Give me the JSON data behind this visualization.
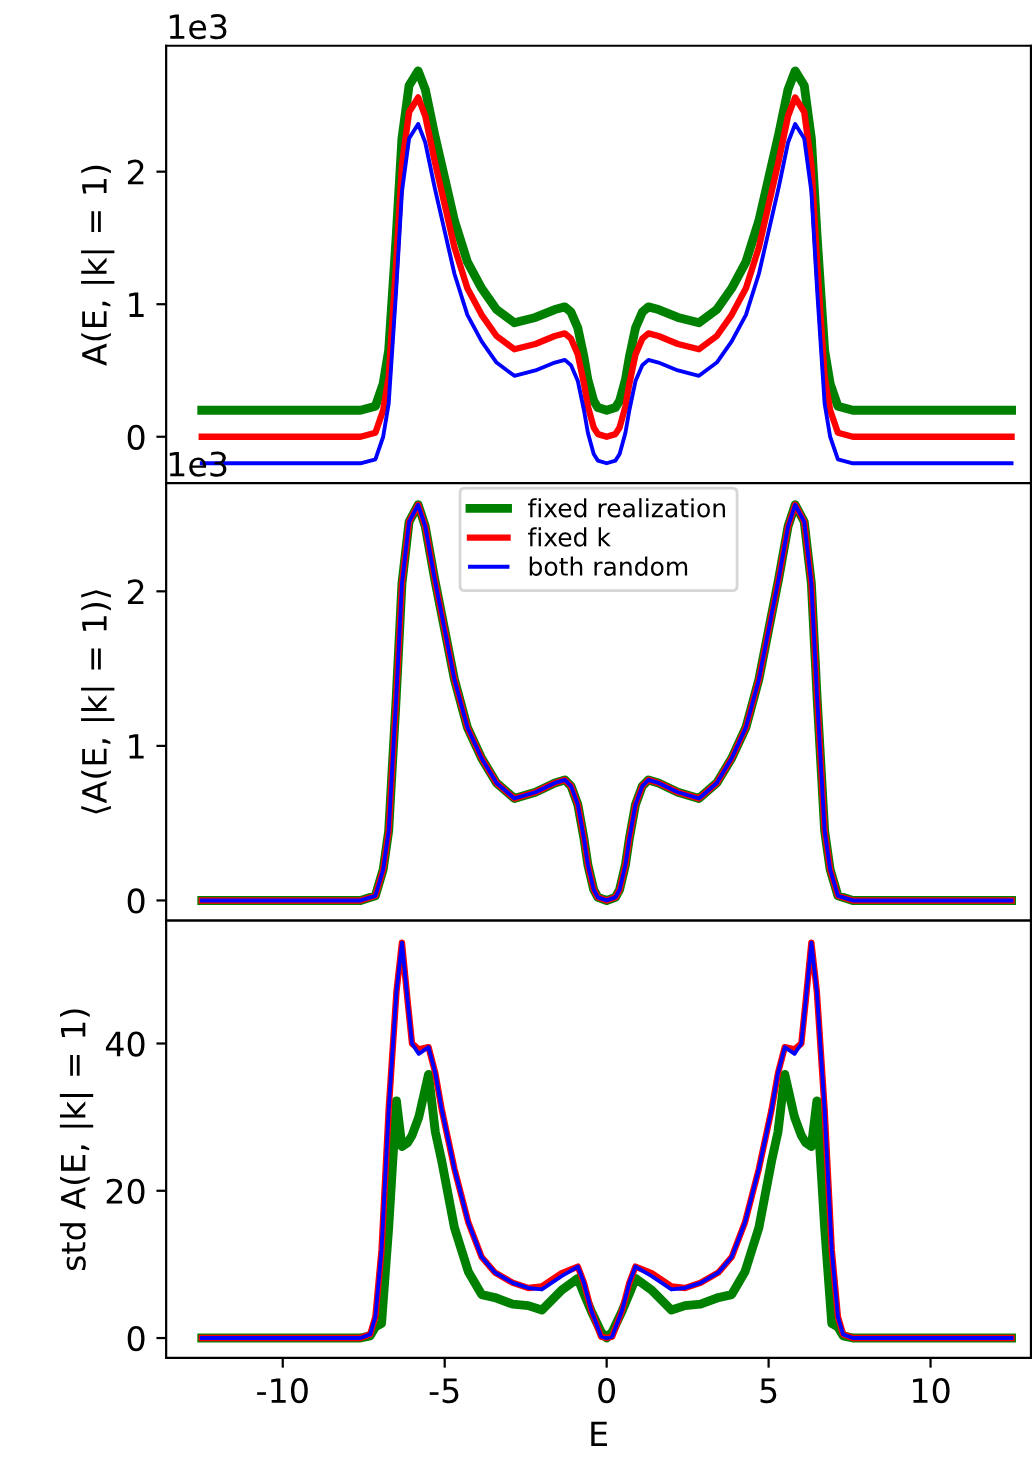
{
  "chart_data": [
    {
      "type": "line",
      "ylabel": "A(E, |k| = 1)",
      "annotations": [
        "1e3"
      ],
      "xlim": [
        -13.6,
        13.1
      ],
      "xticks": [
        -10,
        -5,
        0,
        5,
        10
      ],
      "ylim": [
        -0.35,
        2.95
      ],
      "yticks": [
        0,
        1,
        2
      ],
      "tick_labels": "y",
      "grid": false,
      "legend": false,
      "x": [
        -12.5,
        -7.6,
        -7.14,
        -6.9,
        -6.73,
        -6.5,
        -6.32,
        -6.1,
        -5.82,
        -5.6,
        -5.31,
        -5.0,
        -4.7,
        -4.3,
        -3.86,
        -3.4,
        -2.85,
        -2.2,
        -1.6,
        -1.29,
        -1.1,
        -0.89,
        -0.7,
        -0.58,
        -0.4,
        -0.27,
        0,
        0.27,
        0.4,
        0.58,
        0.7,
        0.89,
        1.1,
        1.29,
        1.6,
        2.2,
        2.85,
        3.4,
        3.86,
        4.3,
        4.7,
        5.0,
        5.31,
        5.6,
        5.82,
        6.1,
        6.32,
        6.5,
        6.73,
        6.9,
        7.14,
        7.6,
        12.5
      ],
      "series": [
        {
          "color": "#008000",
          "values": [
            0.2,
            0.2,
            0.23,
            0.4,
            0.65,
            1.5,
            2.25,
            2.65,
            2.76,
            2.62,
            2.28,
            1.95,
            1.63,
            1.32,
            1.12,
            0.96,
            0.86,
            0.9,
            0.96,
            0.98,
            0.94,
            0.82,
            0.6,
            0.43,
            0.27,
            0.22,
            0.2,
            0.22,
            0.27,
            0.43,
            0.6,
            0.82,
            0.94,
            0.98,
            0.96,
            0.9,
            0.86,
            0.96,
            1.12,
            1.32,
            1.63,
            1.95,
            2.28,
            2.62,
            2.76,
            2.65,
            2.25,
            1.5,
            0.65,
            0.4,
            0.23,
            0.2,
            0.2
          ]
        },
        {
          "color": "#ff0000",
          "values": [
            0,
            0,
            0.03,
            0.2,
            0.45,
            1.3,
            2.05,
            2.45,
            2.56,
            2.42,
            2.08,
            1.75,
            1.43,
            1.12,
            0.92,
            0.76,
            0.66,
            0.7,
            0.76,
            0.78,
            0.74,
            0.62,
            0.4,
            0.23,
            0.07,
            0.02,
            0,
            0.02,
            0.07,
            0.23,
            0.4,
            0.62,
            0.74,
            0.78,
            0.76,
            0.7,
            0.66,
            0.76,
            0.92,
            1.12,
            1.43,
            1.75,
            2.08,
            2.42,
            2.56,
            2.45,
            2.05,
            1.3,
            0.45,
            0.2,
            0.03,
            0,
            0
          ]
        },
        {
          "color": "#0000ff",
          "values": [
            -0.2,
            -0.2,
            -0.17,
            0,
            0.25,
            1.1,
            1.85,
            2.25,
            2.36,
            2.22,
            1.88,
            1.55,
            1.23,
            0.92,
            0.72,
            0.56,
            0.46,
            0.5,
            0.56,
            0.58,
            0.54,
            0.42,
            0.2,
            0.03,
            -0.13,
            -0.18,
            -0.2,
            -0.18,
            -0.13,
            0.03,
            0.2,
            0.42,
            0.54,
            0.58,
            0.56,
            0.5,
            0.46,
            0.56,
            0.72,
            0.92,
            1.23,
            1.55,
            1.88,
            2.22,
            2.36,
            2.25,
            1.85,
            1.1,
            0.25,
            0,
            -0.17,
            -0.2,
            -0.2
          ]
        }
      ]
    },
    {
      "type": "line",
      "ylabel": "⟨A(E, |k| = 1)⟩",
      "annotations": [
        "1e3"
      ],
      "xlim": [
        -13.6,
        13.1
      ],
      "xticks": [
        -10,
        -5,
        0,
        5,
        10
      ],
      "ylim": [
        -0.13,
        2.7
      ],
      "yticks": [
        0,
        1,
        2
      ],
      "tick_labels": "y",
      "grid": false,
      "legend": "top",
      "x": [
        -12.5,
        -7.6,
        -7.14,
        -6.9,
        -6.73,
        -6.5,
        -6.32,
        -6.1,
        -5.82,
        -5.6,
        -5.31,
        -5.0,
        -4.7,
        -4.3,
        -3.86,
        -3.4,
        -2.85,
        -2.2,
        -1.6,
        -1.29,
        -1.1,
        -0.89,
        -0.7,
        -0.58,
        -0.4,
        -0.27,
        0,
        0.27,
        0.4,
        0.58,
        0.7,
        0.89,
        1.1,
        1.29,
        1.6,
        2.2,
        2.85,
        3.4,
        3.86,
        4.3,
        4.7,
        5.0,
        5.31,
        5.6,
        5.82,
        6.1,
        6.32,
        6.5,
        6.73,
        6.9,
        7.14,
        7.6,
        12.5
      ],
      "series": [
        {
          "name": "fixed realization",
          "color": "#008000",
          "values": [
            0,
            0,
            0.03,
            0.2,
            0.45,
            1.3,
            2.05,
            2.45,
            2.56,
            2.42,
            2.08,
            1.75,
            1.43,
            1.12,
            0.92,
            0.76,
            0.66,
            0.7,
            0.76,
            0.78,
            0.74,
            0.62,
            0.4,
            0.23,
            0.07,
            0.02,
            0,
            0.02,
            0.07,
            0.23,
            0.4,
            0.62,
            0.74,
            0.78,
            0.76,
            0.7,
            0.66,
            0.76,
            0.92,
            1.12,
            1.43,
            1.75,
            2.08,
            2.42,
            2.56,
            2.45,
            2.05,
            1.3,
            0.45,
            0.2,
            0.03,
            0,
            0
          ]
        },
        {
          "name": "fixed k",
          "color": "#ff0000",
          "values": [
            0,
            0,
            0.03,
            0.2,
            0.45,
            1.3,
            2.05,
            2.45,
            2.56,
            2.42,
            2.08,
            1.75,
            1.43,
            1.12,
            0.92,
            0.76,
            0.66,
            0.7,
            0.76,
            0.78,
            0.74,
            0.62,
            0.4,
            0.23,
            0.07,
            0.02,
            0,
            0.02,
            0.07,
            0.23,
            0.4,
            0.62,
            0.74,
            0.78,
            0.76,
            0.7,
            0.66,
            0.76,
            0.92,
            1.12,
            1.43,
            1.75,
            2.08,
            2.42,
            2.56,
            2.45,
            2.05,
            1.3,
            0.45,
            0.2,
            0.03,
            0,
            0
          ]
        },
        {
          "name": "both random",
          "color": "#0000ff",
          "values": [
            0,
            0,
            0.03,
            0.2,
            0.45,
            1.3,
            2.05,
            2.45,
            2.56,
            2.42,
            2.08,
            1.75,
            1.43,
            1.12,
            0.92,
            0.76,
            0.66,
            0.7,
            0.76,
            0.78,
            0.74,
            0.62,
            0.4,
            0.23,
            0.07,
            0.02,
            0,
            0.02,
            0.07,
            0.23,
            0.4,
            0.62,
            0.74,
            0.78,
            0.76,
            0.7,
            0.66,
            0.76,
            0.92,
            1.12,
            1.43,
            1.75,
            2.08,
            2.42,
            2.56,
            2.45,
            2.05,
            1.3,
            0.45,
            0.2,
            0.03,
            0,
            0
          ]
        }
      ]
    },
    {
      "type": "line",
      "ylabel": "std A(E, |k| = 1)",
      "xlabel": "E",
      "xlim": [
        -13.6,
        13.1
      ],
      "xticks": [
        -10,
        -5,
        0,
        5,
        10
      ],
      "ylim": [
        -2.7,
        56.7
      ],
      "yticks": [
        0,
        20,
        40
      ],
      "grid": false,
      "legend": false,
      "x": [
        -12.5,
        -7.6,
        -7.3,
        -7.14,
        -6.95,
        -6.73,
        -6.49,
        -6.32,
        -6.15,
        -6.01,
        -5.8,
        -5.5,
        -5.29,
        -5.09,
        -4.7,
        -4.27,
        -3.86,
        -3.45,
        -2.9,
        -2.42,
        -2.0,
        -1.39,
        -0.89,
        -0.7,
        -0.48,
        -0.17,
        0,
        0.17,
        0.48,
        0.7,
        0.89,
        1.39,
        2.0,
        2.42,
        2.9,
        3.45,
        3.86,
        4.27,
        4.7,
        5.09,
        5.29,
        5.5,
        5.8,
        6.01,
        6.15,
        6.32,
        6.49,
        6.73,
        6.95,
        7.14,
        7.3,
        7.6,
        12.5
      ],
      "series": [
        {
          "color": "#008000",
          "values": [
            0,
            0,
            0.3,
            1.5,
            2,
            15,
            32.2,
            26,
            26.5,
            27.5,
            30,
            35.8,
            28,
            24,
            15,
            9,
            5.9,
            5.5,
            4.6,
            4.4,
            3.8,
            6.5,
            8.1,
            6,
            3.7,
            0.8,
            0,
            0.8,
            3.7,
            6,
            8.1,
            6.5,
            3.8,
            4.4,
            4.6,
            5.5,
            5.9,
            9,
            15,
            24,
            28,
            35.8,
            30,
            27.5,
            26.5,
            26,
            32.2,
            15,
            2,
            1.5,
            0.3,
            0,
            0
          ]
        },
        {
          "color": "#ff0000",
          "values": [
            0,
            0,
            0.5,
            2.9,
            12,
            31,
            47,
            53.7,
            46,
            40,
            39.2,
            39.5,
            36,
            31,
            23,
            15.7,
            11,
            8.9,
            7.5,
            6.8,
            7.0,
            8.8,
            9.7,
            7.5,
            3.8,
            0.2,
            0,
            0.2,
            3.8,
            7.5,
            9.7,
            8.8,
            7.0,
            6.8,
            7.5,
            8.9,
            11,
            15.7,
            23,
            31,
            36,
            39.5,
            39.2,
            40,
            46,
            53.7,
            47,
            31,
            12,
            2.9,
            0.5,
            0,
            0
          ]
        },
        {
          "color": "#0000ff",
          "values": [
            0,
            0,
            0.5,
            2.9,
            12,
            31,
            47,
            53.7,
            46,
            40,
            38.6,
            39.5,
            36,
            31,
            23,
            15.7,
            11,
            8.9,
            7.5,
            6.8,
            6.6,
            8.4,
            9.7,
            7.5,
            3.8,
            0.2,
            0,
            0.2,
            3.8,
            7.5,
            9.7,
            8.4,
            6.6,
            6.8,
            7.5,
            8.9,
            11,
            15.7,
            23,
            31,
            36,
            39.5,
            38.6,
            40,
            46,
            53.7,
            47,
            31,
            12,
            2.9,
            0.5,
            0,
            0
          ]
        }
      ]
    }
  ]
}
